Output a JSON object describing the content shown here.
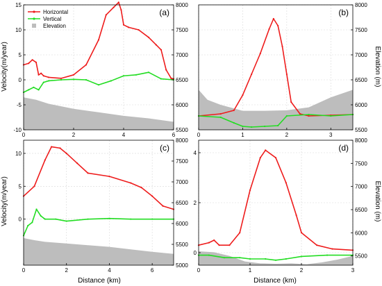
{
  "figure": {
    "shared_x_label": "Distance (km)",
    "left_y_label": "Velocity(m/year)",
    "right_y_label": "Elevation (m)",
    "legend": {
      "entries": [
        {
          "label": "Horizontal",
          "color": "#ee1c1c",
          "marker": "line-dot"
        },
        {
          "label": "Vertical",
          "color": "#22dd22",
          "marker": "line-dot"
        },
        {
          "label": "Elevation",
          "color": "#bdbdbd",
          "marker": "square"
        }
      ]
    }
  },
  "chart_data": [
    {
      "panel": "(a)",
      "type": "line",
      "xlim": [
        0,
        6
      ],
      "x_ticks": [
        0,
        2,
        4,
        6
      ],
      "ylim": [
        -10,
        15
      ],
      "y_ticks": [
        -10,
        -5,
        0,
        5,
        10,
        15
      ],
      "y2lim": [
        5500,
        8000
      ],
      "y2_ticks": [
        5500,
        6000,
        6500,
        7000,
        7500,
        8000
      ],
      "grid": true,
      "series": [
        {
          "name": "Horizontal",
          "axis": "left",
          "x": [
            0,
            0.2,
            0.35,
            0.5,
            0.6,
            0.7,
            0.8,
            1.0,
            1.5,
            2.0,
            2.5,
            3.0,
            3.3,
            3.6,
            3.8,
            3.9,
            4.0,
            4.2,
            4.6,
            5.0,
            5.3,
            5.5,
            5.7,
            5.9,
            6.0
          ],
          "y": [
            3.0,
            3.3,
            4.0,
            3.5,
            1.0,
            1.3,
            0.8,
            0.5,
            0.3,
            1.0,
            3.0,
            8.0,
            13.0,
            14.5,
            15.5,
            14.0,
            11.0,
            10.5,
            10.0,
            8.5,
            7.0,
            6.0,
            2.0,
            0.3,
            0.2
          ]
        },
        {
          "name": "Vertical",
          "axis": "left",
          "x": [
            0,
            0.2,
            0.4,
            0.6,
            0.8,
            1.0,
            1.5,
            2.0,
            2.5,
            3.0,
            3.5,
            4.0,
            4.5,
            5.0,
            5.5,
            6.0
          ],
          "y": [
            -2.5,
            -2.0,
            -1.5,
            -2.0,
            -0.5,
            -0.2,
            0.0,
            0.1,
            0.0,
            -1.0,
            -0.2,
            0.8,
            1.0,
            1.5,
            0.2,
            0.0
          ]
        },
        {
          "name": "Elevation",
          "axis": "right",
          "x": [
            0,
            0.5,
            1.0,
            2.0,
            3.0,
            4.0,
            5.0,
            6.0
          ],
          "y": [
            6150,
            6100,
            6020,
            5920,
            5850,
            5780,
            5730,
            5660
          ]
        }
      ]
    },
    {
      "panel": "(b)",
      "type": "line",
      "xlim": [
        0,
        3.5
      ],
      "x_ticks": [
        0,
        1,
        2,
        3
      ],
      "ylim": [
        -2,
        16
      ],
      "y_ticks": [],
      "y2lim": [
        5500,
        8000
      ],
      "y2_ticks": [
        5500,
        6000,
        6500,
        7000,
        7500,
        8000
      ],
      "grid": true,
      "series": [
        {
          "name": "Horizontal",
          "axis": "left",
          "x": [
            0,
            0.5,
            0.8,
            1.0,
            1.2,
            1.4,
            1.6,
            1.7,
            1.8,
            1.9,
            2.0,
            2.1,
            2.3,
            2.5,
            3.0,
            3.5
          ],
          "y": [
            0.0,
            0.3,
            0.8,
            3.0,
            6.0,
            9.0,
            12.5,
            14.0,
            13.0,
            10.0,
            6.0,
            2.0,
            0.3,
            0.0,
            0.1,
            0.2
          ]
        },
        {
          "name": "Vertical",
          "axis": "left",
          "x": [
            0,
            0.5,
            0.8,
            1.0,
            1.2,
            1.5,
            1.8,
            2.0,
            2.5,
            3.0,
            3.5
          ],
          "y": [
            0.0,
            -0.2,
            -1.0,
            -1.5,
            -1.6,
            -1.5,
            -1.4,
            0.0,
            0.2,
            0.0,
            0.2
          ]
        },
        {
          "name": "Elevation",
          "axis": "right",
          "x": [
            0,
            0.2,
            0.5,
            1.0,
            1.5,
            2.0,
            2.5,
            3.0,
            3.5
          ],
          "y": [
            6300,
            6100,
            6000,
            5880,
            5880,
            5890,
            5950,
            6150,
            6300
          ]
        }
      ]
    },
    {
      "panel": "(c)",
      "type": "line",
      "xlim": [
        0,
        7
      ],
      "x_ticks": [
        0,
        2,
        4,
        6
      ],
      "ylim": [
        -7,
        12
      ],
      "y_ticks": [
        0,
        5,
        10
      ],
      "y2lim": [
        5000,
        8000
      ],
      "y2_ticks": [
        5000,
        5500,
        6000,
        6500,
        7000,
        7500,
        8000
      ],
      "grid": true,
      "series": [
        {
          "name": "Horizontal",
          "axis": "left",
          "x": [
            0,
            0.5,
            1.0,
            1.3,
            1.7,
            2.0,
            2.5,
            3.0,
            4.0,
            5.0,
            5.5,
            6.0,
            6.5,
            7.0
          ],
          "y": [
            3.5,
            5.0,
            9.0,
            11.0,
            10.8,
            10.0,
            8.5,
            7.0,
            6.5,
            5.5,
            4.8,
            3.5,
            2.0,
            1.5
          ]
        },
        {
          "name": "Vertical",
          "axis": "left",
          "x": [
            0,
            0.2,
            0.4,
            0.6,
            0.8,
            1.0,
            1.5,
            2.0,
            3.0,
            4.0,
            5.0,
            6.0,
            7.0
          ],
          "y": [
            -2.5,
            -1.0,
            -0.5,
            1.5,
            0.5,
            0.0,
            0.0,
            -0.3,
            0.0,
            0.1,
            0.0,
            0.0,
            0.0
          ]
        },
        {
          "name": "Elevation",
          "axis": "right",
          "x": [
            0,
            0.5,
            1.0,
            2.0,
            3.0,
            4.0,
            5.0,
            6.0,
            7.0
          ],
          "y": [
            5650,
            5600,
            5560,
            5520,
            5480,
            5440,
            5380,
            5320,
            5270
          ]
        }
      ]
    },
    {
      "panel": "(d)",
      "type": "line",
      "xlim": [
        0,
        3
      ],
      "x_ticks": [
        0,
        1,
        2,
        3
      ],
      "ylim": [
        -0.5,
        4.5
      ],
      "y_ticks": [
        0,
        2,
        4
      ],
      "y2lim": [
        5300,
        8000
      ],
      "y2_ticks": [
        5500,
        6000,
        6500,
        7000,
        7500,
        8000
      ],
      "grid": true,
      "series": [
        {
          "name": "Horizontal",
          "axis": "left",
          "x": [
            0,
            0.2,
            0.3,
            0.4,
            0.6,
            0.8,
            1.0,
            1.2,
            1.3,
            1.5,
            1.7,
            1.9,
            2.0,
            2.3,
            2.6,
            3.0
          ],
          "y": [
            0.3,
            0.4,
            0.5,
            0.3,
            0.3,
            0.8,
            2.5,
            3.8,
            4.1,
            3.8,
            2.8,
            1.5,
            0.8,
            0.3,
            0.15,
            0.1
          ]
        },
        {
          "name": "Vertical",
          "axis": "left",
          "x": [
            0,
            0.2,
            0.5,
            0.8,
            1.0,
            1.3,
            1.5,
            1.7,
            2.0,
            2.5,
            3.0
          ],
          "y": [
            -0.1,
            -0.1,
            -0.2,
            -0.2,
            -0.25,
            -0.25,
            -0.3,
            -0.25,
            -0.15,
            -0.1,
            -0.1
          ]
        },
        {
          "name": "Elevation",
          "axis": "right",
          "x": [
            0,
            0.3,
            0.6,
            0.9,
            1.2,
            1.5,
            1.8,
            2.1,
            2.4,
            2.7,
            3.0
          ],
          "y": [
            5600,
            5580,
            5500,
            5380,
            5340,
            5330,
            5340,
            5320,
            5360,
            5420,
            5500
          ]
        }
      ]
    }
  ]
}
